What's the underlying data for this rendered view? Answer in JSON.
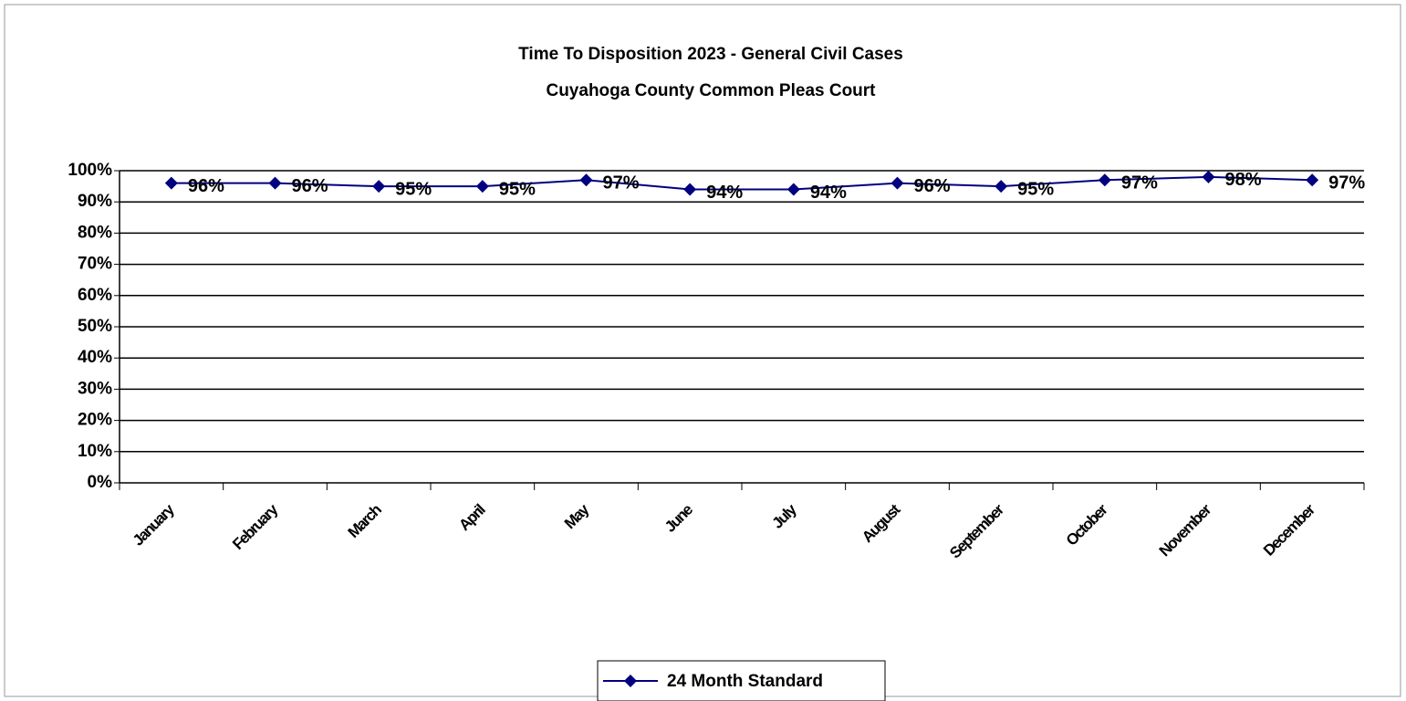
{
  "chart_data": {
    "type": "line",
    "title": "Time To Disposition 2023 - General Civil Cases",
    "subtitle": "Cuyahoga County Common Pleas Court",
    "categories": [
      "January",
      "February",
      "March",
      "April",
      "May",
      "June",
      "July",
      "August",
      "September",
      "October",
      "November",
      "December"
    ],
    "series": [
      {
        "name": "24 Month Standard",
        "color": "#000080",
        "values": [
          96,
          96,
          95,
          95,
          97,
          94,
          94,
          96,
          95,
          97,
          98,
          97
        ],
        "value_labels": [
          "96%",
          "96%",
          "95%",
          "95%",
          "97%",
          "94%",
          "94%",
          "96%",
          "95%",
          "97%",
          "98%",
          "97%"
        ]
      }
    ],
    "ylim": [
      0,
      100
    ],
    "yticks": [
      {
        "value": 0,
        "label": "0%"
      },
      {
        "value": 10,
        "label": "10%"
      },
      {
        "value": 20,
        "label": "20%"
      },
      {
        "value": 30,
        "label": "30%"
      },
      {
        "value": 40,
        "label": "40%"
      },
      {
        "value": 50,
        "label": "50%"
      },
      {
        "value": 60,
        "label": "60%"
      },
      {
        "value": 70,
        "label": "70%"
      },
      {
        "value": 80,
        "label": "80%"
      },
      {
        "value": 90,
        "label": "90%"
      },
      {
        "value": 100,
        "label": "100%"
      }
    ],
    "grid": true,
    "legend": "bottom"
  }
}
